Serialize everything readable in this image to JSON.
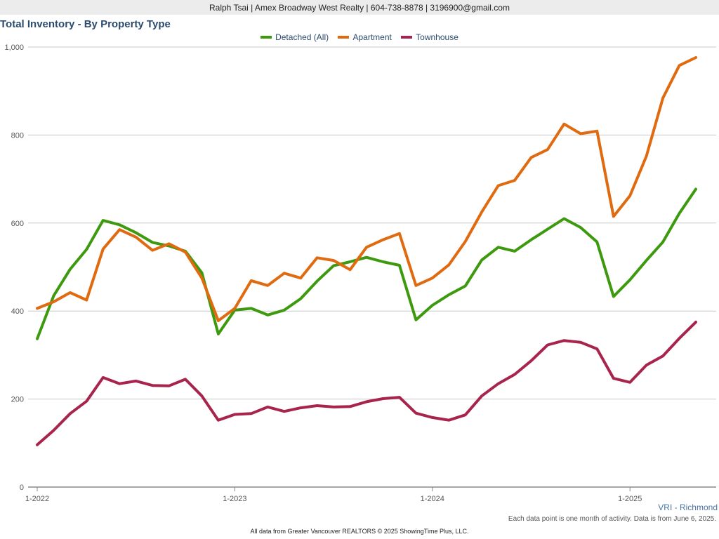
{
  "header": {
    "contact": "Ralph Tsai | Amex Broadway West Realty | 604-738-8878 | 3196900@gmail.com"
  },
  "footer": {
    "region": "VRI - Richmond",
    "note": "Each data point is one month of activity. Data is from June 6, 2025.",
    "credit": "All data from Greater Vancouver REALTORS © 2025 ShowingTime Plus, LLC."
  },
  "chart_data": {
    "type": "line",
    "title": "Total Inventory - By Property Type",
    "xlabel": "",
    "ylabel": "",
    "ylim": [
      0,
      1000
    ],
    "yticks": [
      "0",
      "200",
      "400",
      "600",
      "800",
      "1,000"
    ],
    "xtick_labels": [
      "1-2022",
      "1-2023",
      "1-2024",
      "1-2025"
    ],
    "x": [
      "2022-01",
      "2022-02",
      "2022-03",
      "2022-04",
      "2022-05",
      "2022-06",
      "2022-07",
      "2022-08",
      "2022-09",
      "2022-10",
      "2022-11",
      "2022-12",
      "2023-01",
      "2023-02",
      "2023-03",
      "2023-04",
      "2023-05",
      "2023-06",
      "2023-07",
      "2023-08",
      "2023-09",
      "2023-10",
      "2023-11",
      "2023-12",
      "2024-01",
      "2024-02",
      "2024-03",
      "2024-04",
      "2024-05",
      "2024-06",
      "2024-07",
      "2024-08",
      "2024-09",
      "2024-10",
      "2024-11",
      "2024-12",
      "2025-01",
      "2025-02",
      "2025-03",
      "2025-04",
      "2025-05"
    ],
    "grid": true,
    "legend_position": "top",
    "series": [
      {
        "name": "Detached (All)",
        "color": "#3d9a0e",
        "values": [
          337,
          435,
          495,
          540,
          606,
          596,
          578,
          556,
          548,
          536,
          487,
          348,
          402,
          406,
          391,
          402,
          428,
          468,
          503,
          512,
          522,
          512,
          504,
          380,
          413,
          437,
          457,
          516,
          545,
          536,
          562,
          586,
          610,
          590,
          557,
          433,
          471,
          515,
          557,
          622,
          677
        ]
      },
      {
        "name": "Apartment",
        "color": "#e06a0f",
        "values": [
          406,
          421,
          442,
          425,
          541,
          585,
          568,
          538,
          553,
          534,
          475,
          378,
          406,
          469,
          458,
          486,
          475,
          521,
          515,
          494,
          545,
          562,
          576,
          458,
          475,
          505,
          558,
          625,
          685,
          697,
          749,
          767,
          825,
          803,
          809,
          615,
          662,
          752,
          884,
          958,
          976
        ]
      },
      {
        "name": "Townhouse",
        "color": "#a8244c",
        "values": [
          96,
          129,
          167,
          195,
          249,
          235,
          241,
          231,
          230,
          245,
          207,
          152,
          165,
          167,
          182,
          172,
          180,
          185,
          182,
          183,
          194,
          201,
          204,
          168,
          158,
          152,
          164,
          207,
          235,
          256,
          287,
          323,
          333,
          329,
          314,
          247,
          238,
          277,
          298,
          338,
          375
        ]
      }
    ]
  }
}
